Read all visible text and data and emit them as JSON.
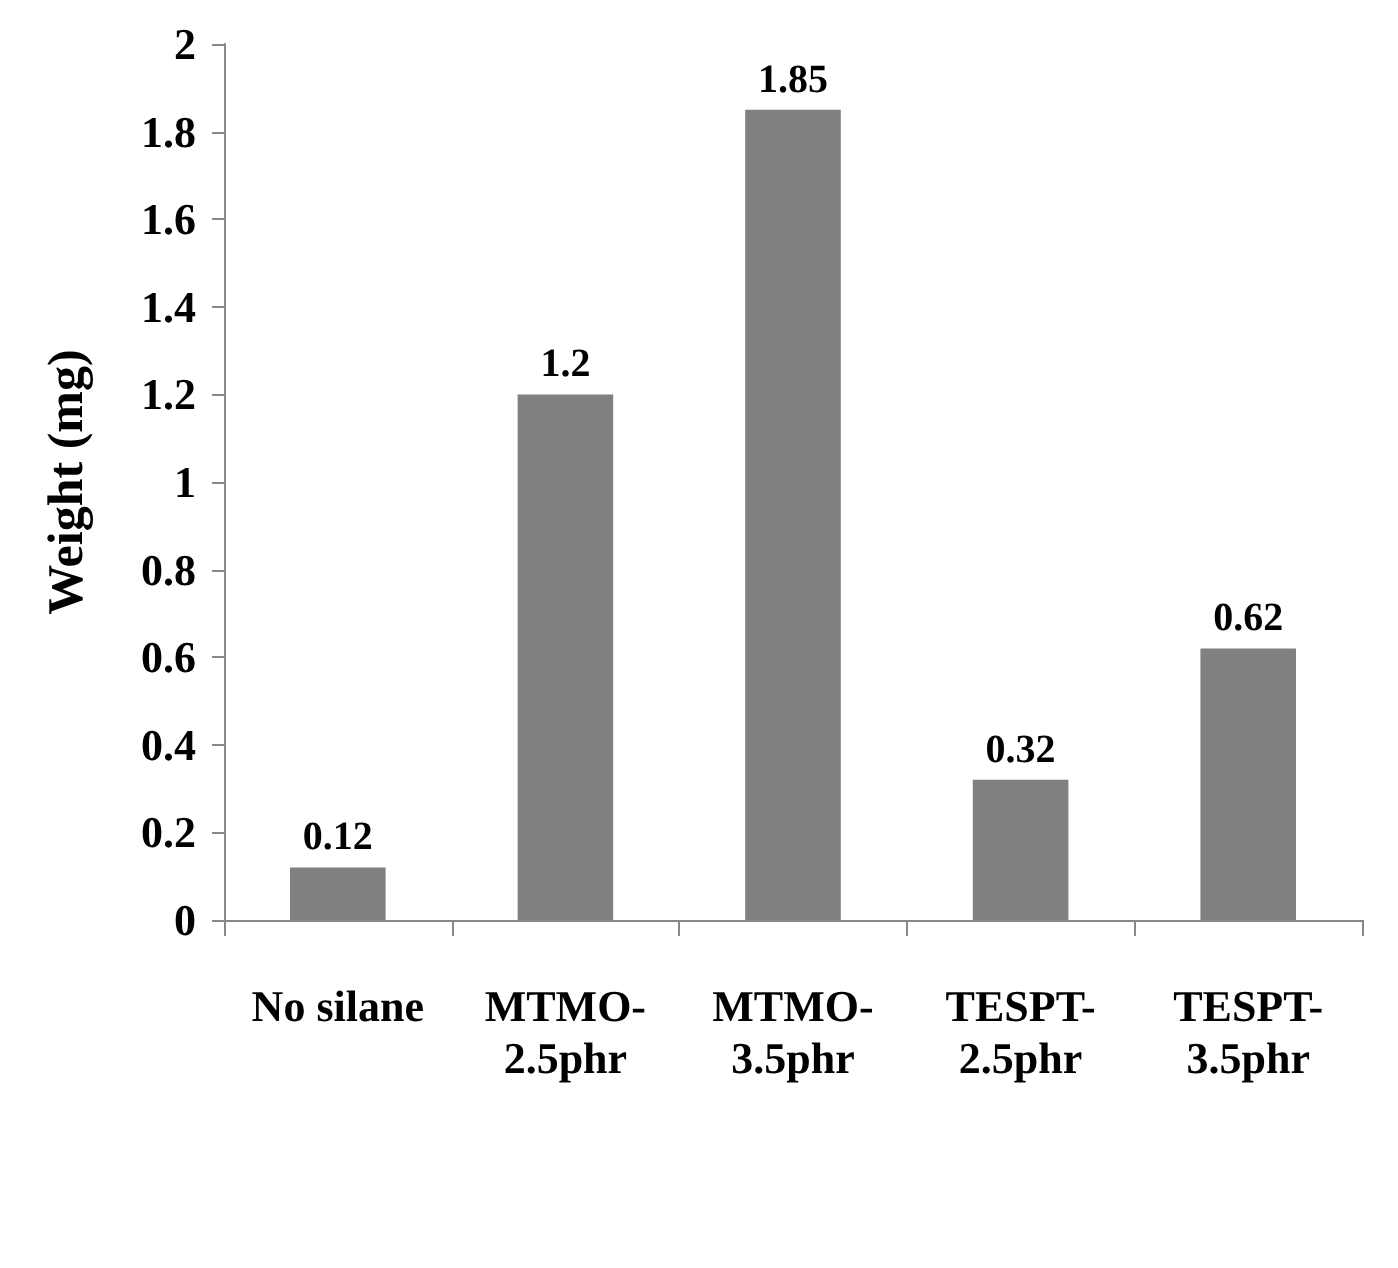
{
  "chart_data": {
    "type": "bar",
    "ylabel": "Weight (mg)",
    "categories": [
      "No silane",
      "MTMO-2.5phr",
      "MTMO-3.5phr",
      "TESPT-2.5phr",
      "TESPT-3.5phr"
    ],
    "values": [
      0.12,
      1.2,
      1.85,
      0.32,
      0.62
    ],
    "color": "#808080",
    "ylim": [
      0,
      2
    ],
    "yticks": [
      0,
      0.2,
      0.4,
      0.6,
      0.8,
      1,
      1.2,
      1.4,
      1.6,
      1.8,
      2
    ],
    "grid": false,
    "data_labels": true
  }
}
